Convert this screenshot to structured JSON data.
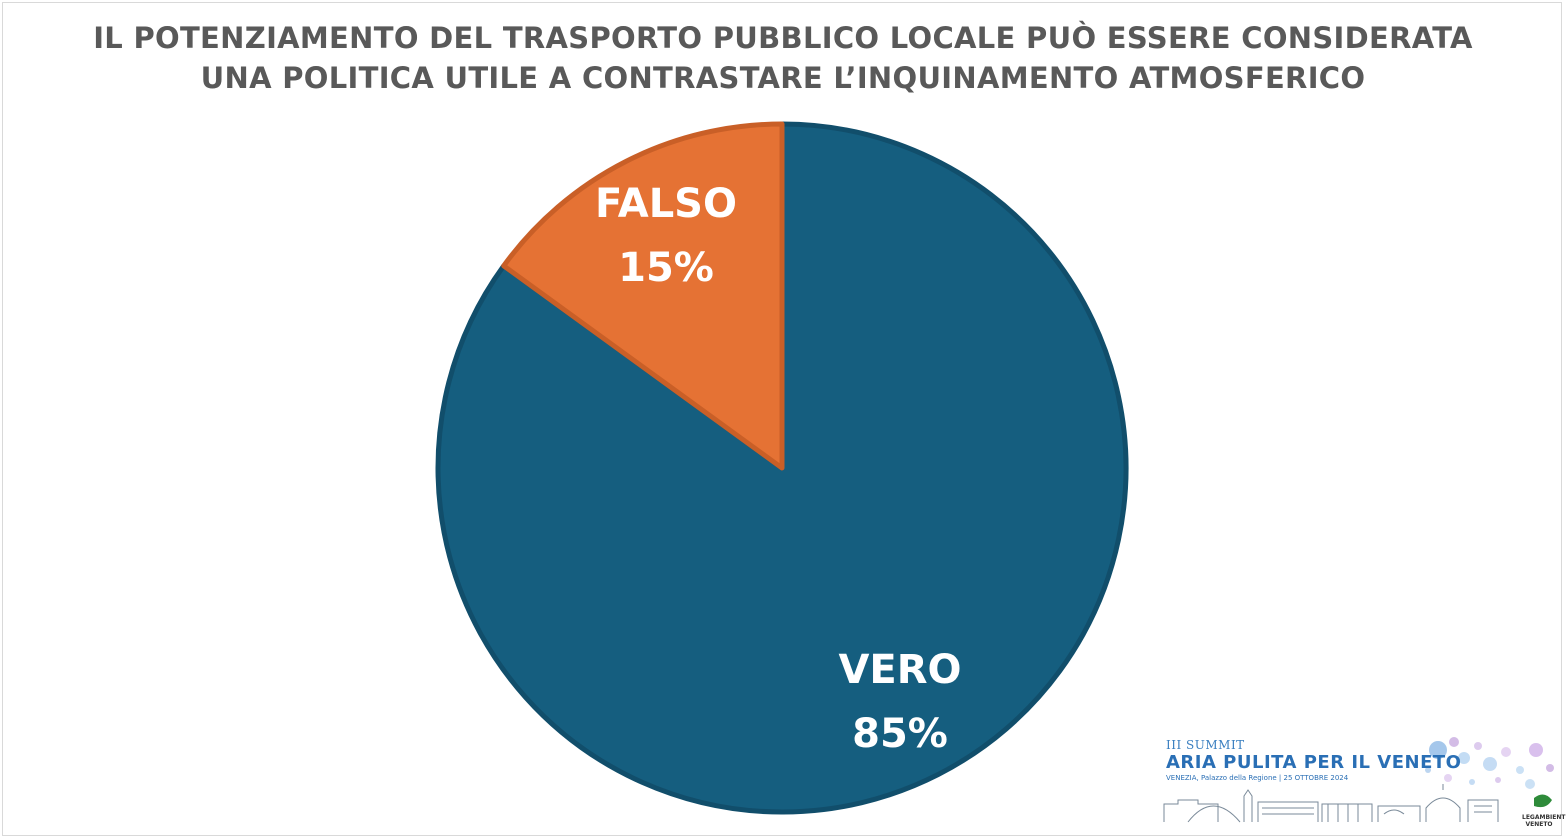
{
  "chart_data": {
    "type": "pie",
    "title_lines": [
      "IL POTENZIAMENTO DEL TRASPORTO PUBBLICO LOCALE PUÒ ESSERE CONSIDERATA",
      "UNA POLITICA UTILE A CONTRASTARE L’INQUINAMENTO ATMOSFERICO"
    ],
    "slices": [
      {
        "label": "VERO",
        "value": 85,
        "value_label": "85%",
        "color": "#155e7f"
      },
      {
        "label": "FALSO",
        "value": 15,
        "value_label": "15%",
        "color": "#e57234"
      }
    ],
    "start": "12 o'clock",
    "direction": "clockwise",
    "legend": "none"
  },
  "branding": {
    "edition": "III SUMMIT",
    "name": "ARIA PULITA PER IL VENETO",
    "venue": "VENEZIA, Palazzo della Regione | 25 OTTOBRE 2024",
    "org_lines": [
      "LEGAMBIENTE",
      "VENETO"
    ],
    "colors": {
      "primary": "#2a6fb5",
      "accent": "#b58fd6"
    }
  }
}
